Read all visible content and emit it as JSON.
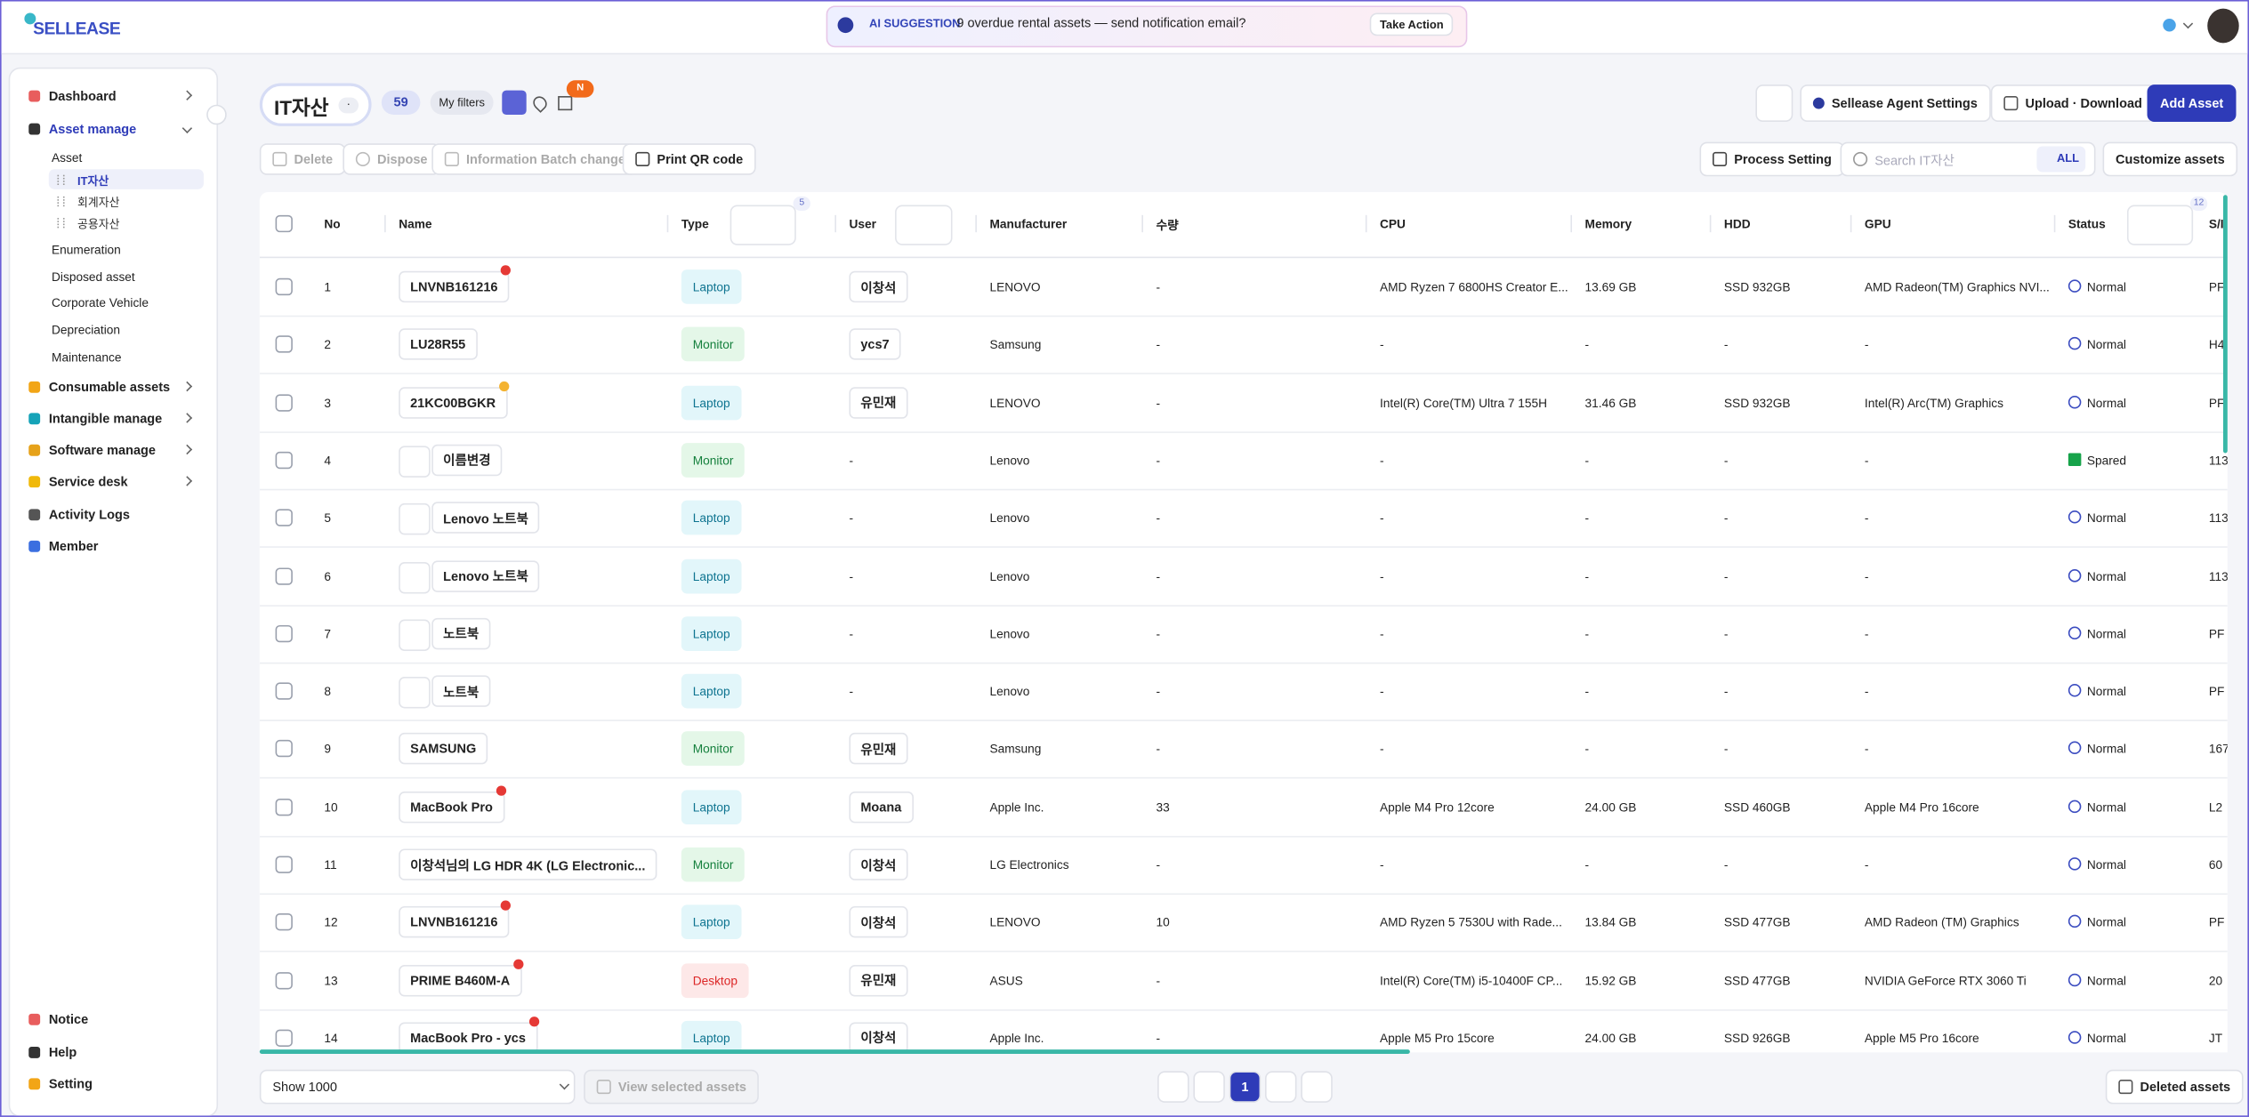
{
  "header": {
    "logo": "SELLEASE",
    "suggestion_label": "AI SUGGESTION",
    "suggestion": "9 overdue rental assets — send notification email?",
    "suggestion_action": "Take Action"
  },
  "sidebar": {
    "main_top": [
      "Dashboard",
      "Asset manage"
    ],
    "asset_sub": [
      "Asset"
    ],
    "asset_tree": [
      "IT자산",
      "회계자산",
      "공용자산"
    ],
    "asset_pages": [
      "Enumeration",
      "Disposed asset",
      "Corporate Vehicle",
      "Depreciation",
      "Maintenance"
    ],
    "main_rest": [
      "Consumable assets",
      "Intangible manage",
      "Software manage",
      "Service desk",
      "Activity Logs",
      "Member"
    ],
    "bottom": [
      "Notice",
      "Help",
      "Setting"
    ]
  },
  "toolbar": {
    "title": "IT자산",
    "title_menu": "·",
    "count": 59,
    "my_filters": "My filters",
    "new_badge": "N",
    "buttons": [
      "Sellease Agent Settings",
      "Upload · Download",
      "Add Asset"
    ],
    "actions": [
      "Delete",
      "Dispose",
      "Information Batch change",
      "Print QR code"
    ],
    "process": "Process Setting",
    "search_placeholder": "Search IT자산",
    "search_scope": "ALL",
    "customize": "Customize assets"
  },
  "table": {
    "columns": [
      "No",
      "Name",
      "Type",
      "User",
      "Manufacturer",
      "수량",
      "CPU",
      "Memory",
      "HDD",
      "GPU",
      "Status",
      "S/I"
    ],
    "type_filter_count": 5,
    "status_filter_count": 12,
    "type_styles": {
      "Laptop": [
        "#e2f6fa",
        "#0e7490"
      ],
      "Monitor": [
        "#e4f7e8",
        "#15803d"
      ],
      "Desktop": [
        "#fde8e8",
        "#dc2626"
      ]
    },
    "status_styles": {
      "Normal": "#3b4cc0",
      "Spared": "#16a34a"
    },
    "rows": [
      {
        "cells": [
          1,
          "LNVNB161216",
          "Laptop",
          "이창석",
          "LENOVO",
          "-",
          "AMD Ryzen 7 6800HS Creator E...",
          "13.69 GB",
          "SSD 932GB",
          "AMD Radeon(TM) Graphics NVI...",
          "Normal",
          "PF"
        ],
        "dot": "#e53935"
      },
      {
        "cells": [
          2,
          "LU28R55",
          "Monitor",
          "ycs7",
          "Samsung",
          "-",
          "-",
          "-",
          "-",
          "-",
          "Normal",
          "H4"
        ]
      },
      {
        "cells": [
          3,
          "21KC00BGKR",
          "Laptop",
          "유민재",
          "LENOVO",
          "-",
          "Intel(R) Core(TM) Ultra 7 155H",
          "31.46 GB",
          "SSD 932GB",
          "Intel(R) Arc(TM) Graphics",
          "Normal",
          "PF"
        ],
        "dot": "#f4b331"
      },
      {
        "cells": [
          4,
          "이름변경",
          "Monitor",
          "-",
          "Lenovo",
          "-",
          "-",
          "-",
          "-",
          "-",
          "Spared",
          "113"
        ],
        "image": true
      },
      {
        "cells": [
          5,
          "Lenovo 노트북",
          "Laptop",
          "-",
          "Lenovo",
          "-",
          "-",
          "-",
          "-",
          "-",
          "Normal",
          "113"
        ],
        "image": true
      },
      {
        "cells": [
          6,
          "Lenovo 노트북",
          "Laptop",
          "-",
          "Lenovo",
          "-",
          "-",
          "-",
          "-",
          "-",
          "Normal",
          "113"
        ],
        "image": true
      },
      {
        "cells": [
          7,
          "노트북",
          "Laptop",
          "-",
          "Lenovo",
          "-",
          "-",
          "-",
          "-",
          "-",
          "Normal",
          "PF"
        ],
        "image": true
      },
      {
        "cells": [
          8,
          "노트북",
          "Laptop",
          "-",
          "Lenovo",
          "-",
          "-",
          "-",
          "-",
          "-",
          "Normal",
          "PF"
        ],
        "image": true
      },
      {
        "cells": [
          9,
          "SAMSUNG",
          "Monitor",
          "유민재",
          "Samsung",
          "-",
          "-",
          "-",
          "-",
          "-",
          "Normal",
          "167"
        ]
      },
      {
        "cells": [
          10,
          "MacBook Pro",
          "Laptop",
          "Moana",
          "Apple Inc.",
          33,
          "Apple M4 Pro 12core",
          "24.00 GB",
          "SSD 460GB",
          "Apple M4 Pro 16core",
          "Normal",
          "L2"
        ],
        "dot": "#e53935"
      },
      {
        "cells": [
          11,
          "이창석님의 LG HDR 4K (LG Electronic...",
          "Monitor",
          "이창석",
          "LG Electronics",
          "-",
          "-",
          "-",
          "-",
          "-",
          "Normal",
          "60"
        ]
      },
      {
        "cells": [
          12,
          "LNVNB161216",
          "Laptop",
          "이창석",
          "LENOVO",
          10,
          "AMD Ryzen 5 7530U with Rade...",
          "13.84 GB",
          "SSD 477GB",
          "AMD Radeon (TM) Graphics",
          "Normal",
          "PF"
        ],
        "dot": "#e53935"
      },
      {
        "cells": [
          13,
          "PRIME B460M-A",
          "Desktop",
          "유민재",
          "ASUS",
          "-",
          "Intel(R) Core(TM) i5-10400F CP...",
          "15.92 GB",
          "SSD 477GB",
          "NVIDIA GeForce RTX 3060 Ti",
          "Normal",
          "20"
        ],
        "dot": "#e53935"
      },
      {
        "cells": [
          14,
          "MacBook Pro - ycs",
          "Laptop",
          "이창석",
          "Apple Inc.",
          "-",
          "Apple M5 Pro 15core",
          "24.00 GB",
          "SSD 926GB",
          "Apple M5 Pro 16core",
          "Normal",
          "JT"
        ],
        "dot": "#e53935"
      }
    ]
  },
  "footer": {
    "page_size": "Show 1000",
    "view_selected": "View selected assets",
    "page": 1,
    "deleted": "Deleted assets"
  }
}
